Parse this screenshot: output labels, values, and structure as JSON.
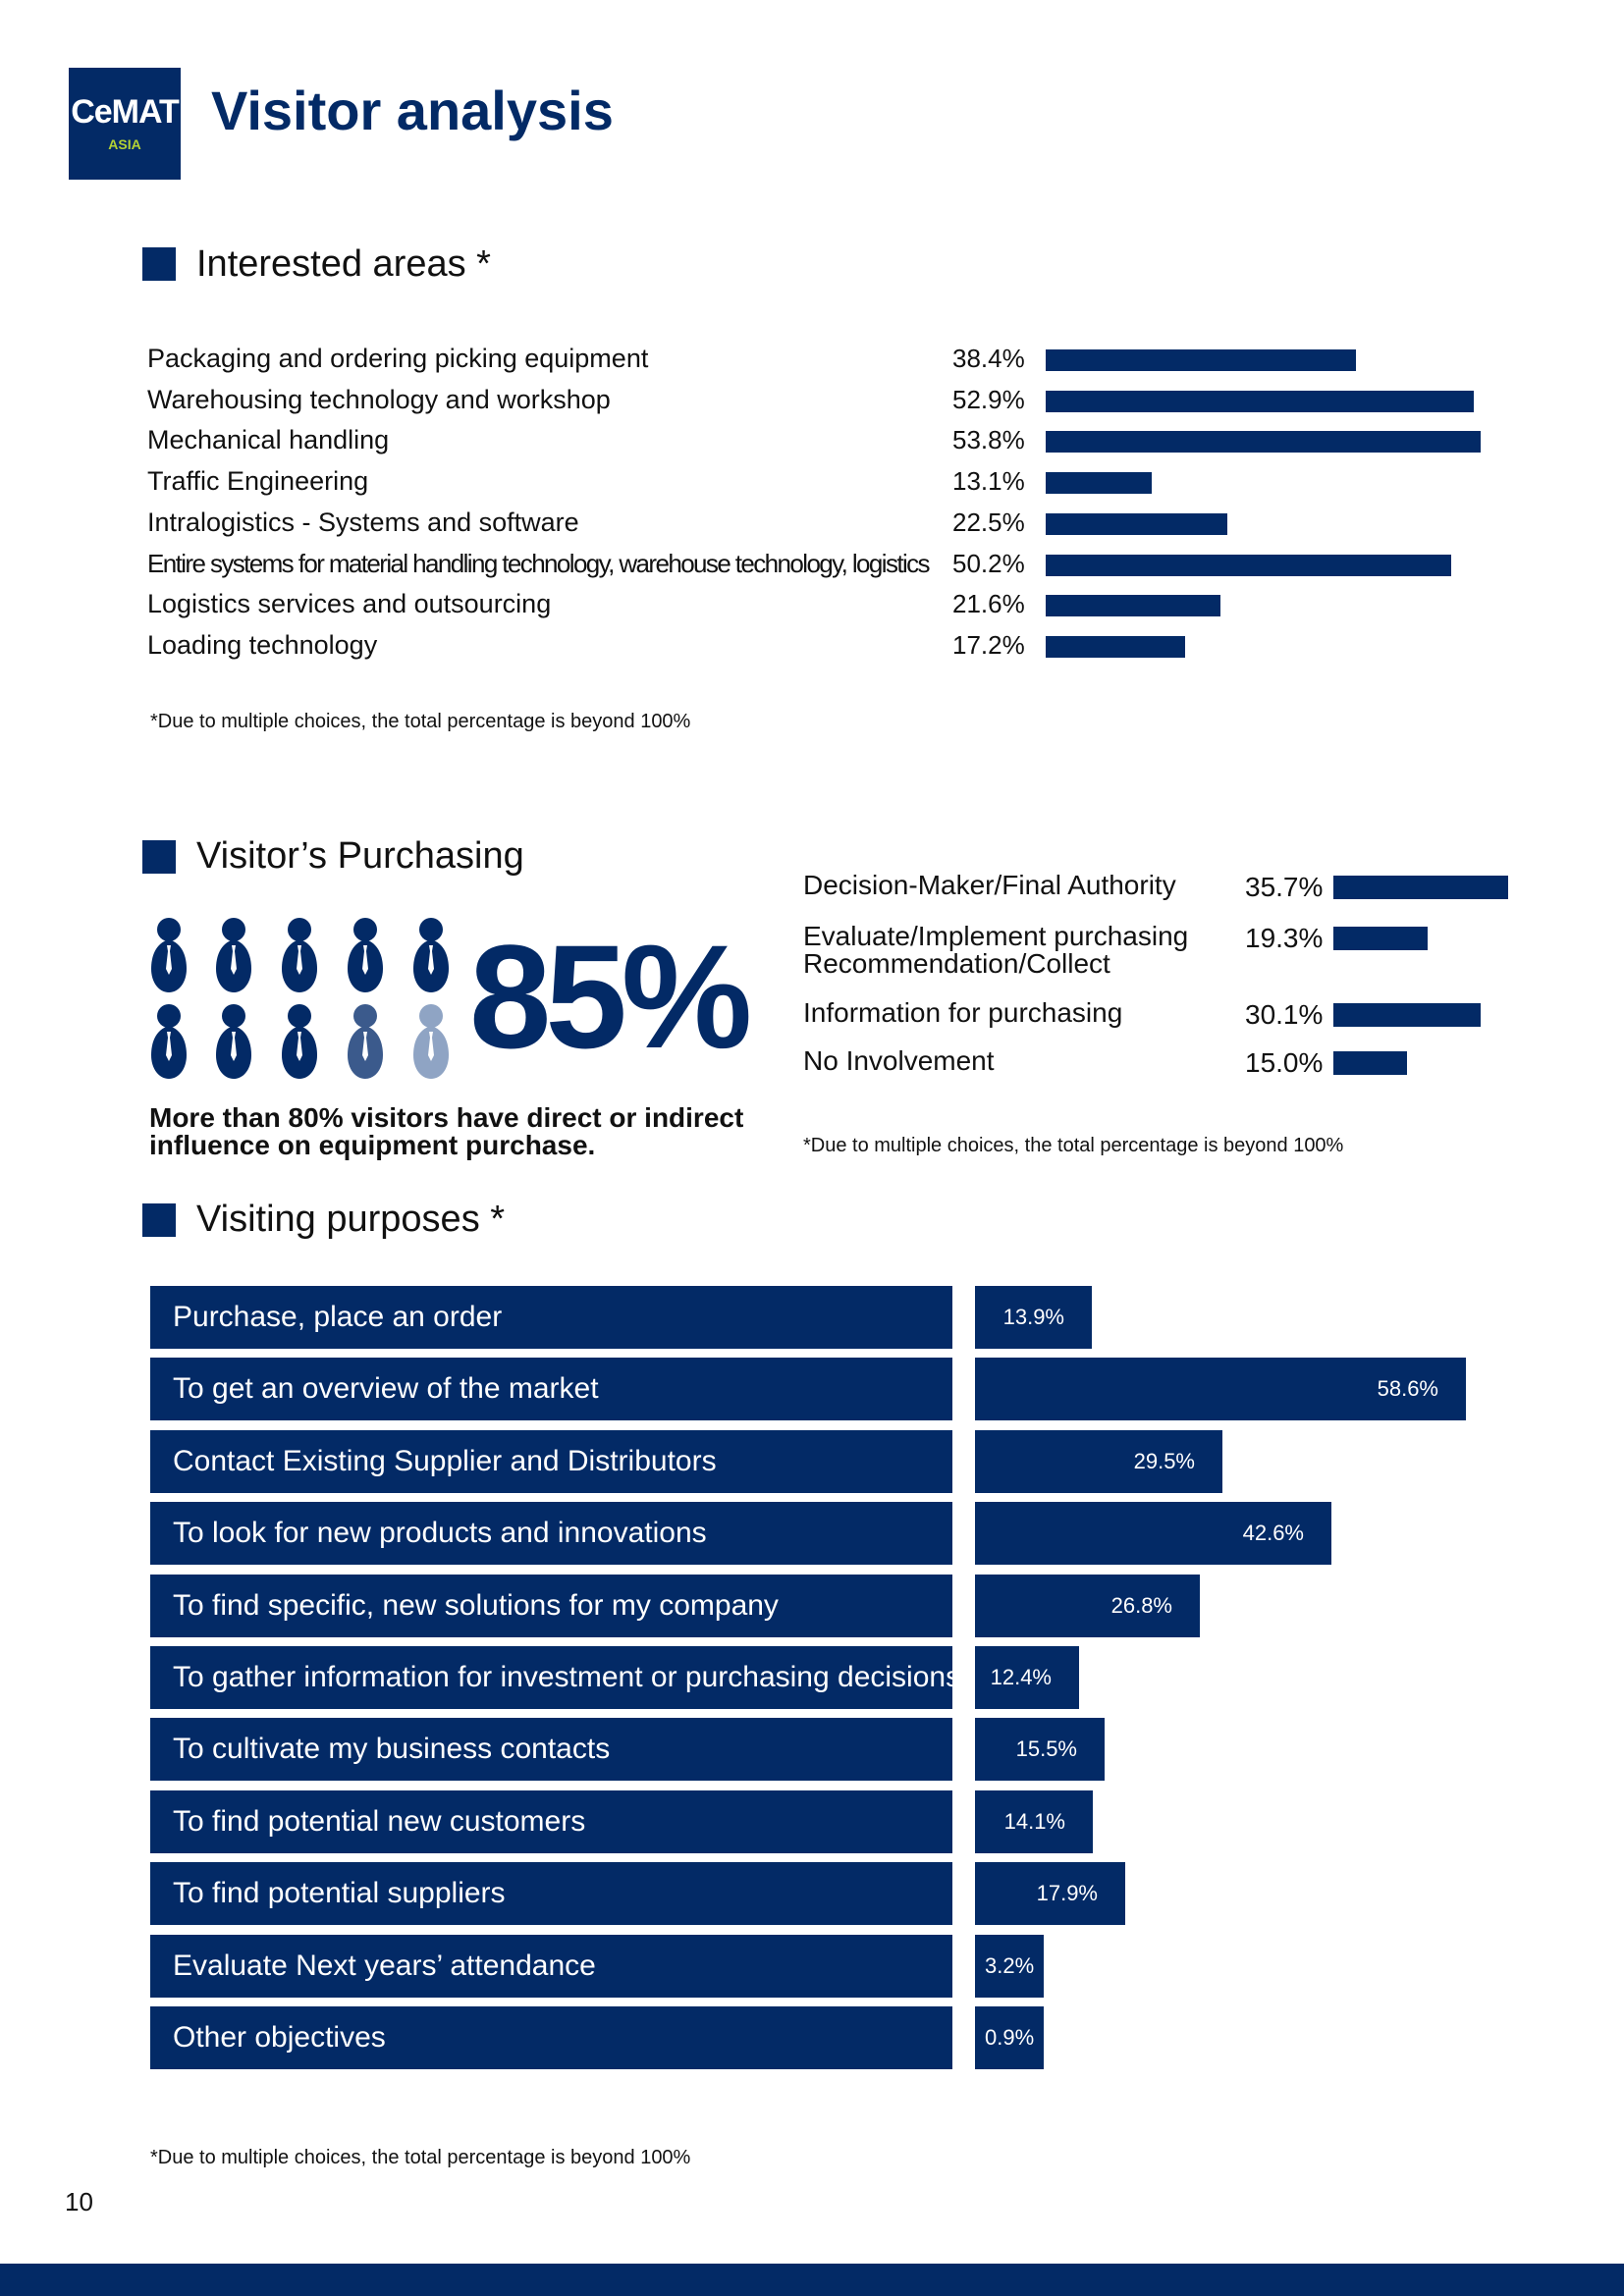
{
  "header": {
    "logo_main": "CeMAT",
    "logo_sub": "ASIA",
    "title": "Visitor analysis"
  },
  "interested_areas": {
    "title": "Interested areas *",
    "items": [
      {
        "label": "Packaging and ordering picking equipment",
        "value": 38.4,
        "pct": "38.4%"
      },
      {
        "label": "Warehousing technology and workshop",
        "value": 52.9,
        "pct": "52.9%"
      },
      {
        "label": "Mechanical handling",
        "value": 53.8,
        "pct": "53.8%"
      },
      {
        "label": "Traffic Engineering",
        "value": 13.1,
        "pct": "13.1%"
      },
      {
        "label": "Intralogistics - Systems and software",
        "value": 22.5,
        "pct": "22.5%"
      },
      {
        "label": "Entire systems for material handling technology, warehouse technology, logistics",
        "value": 50.2,
        "pct": "50.2%"
      },
      {
        "label": "Logistics services and outsourcing",
        "value": 21.6,
        "pct": "21.6%"
      },
      {
        "label": "Loading technology",
        "value": 17.2,
        "pct": "17.2%"
      }
    ],
    "footnote": "*Due to multiple choices, the total percentage is  beyond 100%"
  },
  "purchasing": {
    "title": "Visitor’s   Purchasing",
    "big_percent": "85%",
    "icon_fill_fraction": 0.85,
    "note": "More than 80% visitors have direct or indirect influence on equipment purchase.",
    "items": [
      {
        "label": "Decision-Maker/Final Authority",
        "value": 35.7,
        "pct": "35.7%"
      },
      {
        "label": "Evaluate/Implement purchasing Recommendation/Collect",
        "value": 19.3,
        "pct": "19.3%"
      },
      {
        "label": "Information for purchasing",
        "value": 30.1,
        "pct": "30.1%"
      },
      {
        "label": "No Involvement",
        "value": 15.0,
        "pct": "15.0%"
      }
    ],
    "footnote": "*Due to multiple choices, the total percentage is beyond 100%"
  },
  "visiting_purposes": {
    "title": "Visiting purposes *",
    "items": [
      {
        "label": "Purchase, place an order",
        "value": 13.9,
        "pct": "13.9%"
      },
      {
        "label": "To get an overview of the market",
        "value": 58.6,
        "pct": "58.6%"
      },
      {
        "label": "Contact Existing Supplier and Distributors",
        "value": 29.5,
        "pct": "29.5%"
      },
      {
        "label": "To look for new products and innovations",
        "value": 42.6,
        "pct": "42.6%"
      },
      {
        "label": "To find specific, new solutions for my company",
        "value": 26.8,
        "pct": "26.8%"
      },
      {
        "label": "To gather information for investment or purchasing decisions",
        "value": 12.4,
        "pct": "12.4%"
      },
      {
        "label": "To cultivate my business contacts",
        "value": 15.5,
        "pct": "15.5%"
      },
      {
        "label": "To find potential new customers",
        "value": 14.1,
        "pct": "14.1%"
      },
      {
        "label": "To find potential suppliers",
        "value": 17.9,
        "pct": "17.9%"
      },
      {
        "label": "Evaluate Next years’   attendance",
        "value": 3.2,
        "pct": "3.2%"
      },
      {
        "label": "Other objectives",
        "value": 0.9,
        "pct": "0.9%"
      }
    ],
    "footnote": "*Due to multiple choices, the total percentage is beyond 100%"
  },
  "page_number": "10",
  "colors": {
    "navy": "#032a66",
    "mid_blue": "#3b5a8c",
    "light_blue": "#8fa4c4",
    "logo_accent": "#b3d234"
  }
}
